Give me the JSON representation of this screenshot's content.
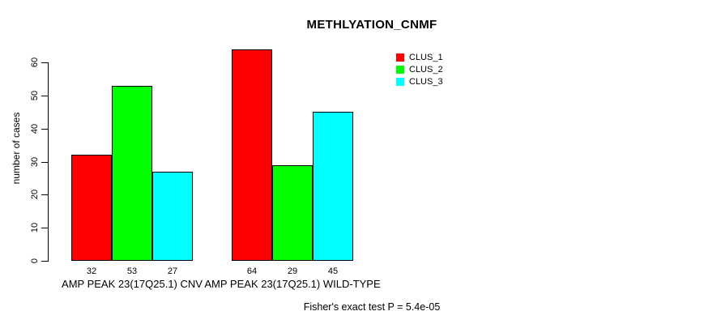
{
  "chart_data": {
    "type": "bar",
    "title": "METHLYATION_CNMF",
    "ylabel": "number of cases",
    "xlabel": "",
    "categories": [
      "AMP PEAK 23(17Q25.1) CNV",
      "AMP PEAK 23(17Q25.1) WILD-TYPE"
    ],
    "series": [
      {
        "name": "CLUS_1",
        "color": "#FF0000",
        "values": [
          32,
          64
        ]
      },
      {
        "name": "CLUS_2",
        "color": "#00FF00",
        "values": [
          53,
          29
        ]
      },
      {
        "name": "CLUS_3",
        "color": "#00FFFF",
        "values": [
          27,
          45
        ]
      }
    ],
    "bar_value_labels": [
      [
        32,
        53,
        27
      ],
      [
        64,
        29,
        45
      ]
    ],
    "ylim": [
      0,
      60
    ],
    "yticks": [
      0,
      10,
      20,
      30,
      40,
      50,
      60
    ],
    "grid": false,
    "legend_position": "top-right",
    "legend_entries": [
      "CLUS_1",
      "CLUS_2",
      "CLUS_3"
    ],
    "annotation": "Fisher's exact test P = 5.4e-05"
  }
}
